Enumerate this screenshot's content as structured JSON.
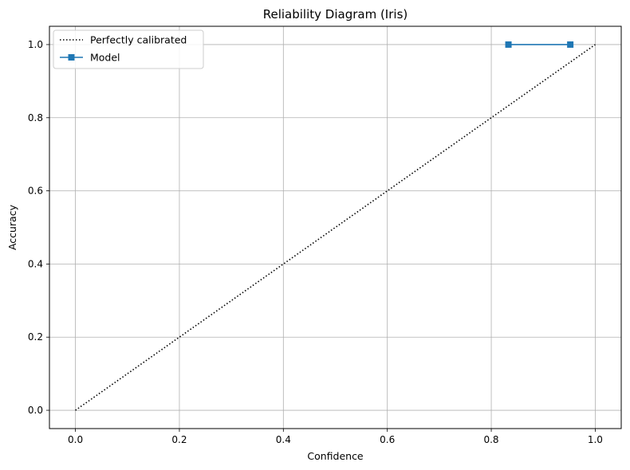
{
  "chart_data": {
    "type": "line",
    "title": "Reliability Diagram (Iris)",
    "xlabel": "Confidence",
    "ylabel": "Accuracy",
    "xlim": [
      -0.05,
      1.05
    ],
    "ylim": [
      -0.05,
      1.05
    ],
    "xticks": [
      "0.0",
      "0.2",
      "0.4",
      "0.6",
      "0.8",
      "1.0"
    ],
    "yticks": [
      "0.0",
      "0.2",
      "0.4",
      "0.6",
      "0.8",
      "1.0"
    ],
    "grid": true,
    "legend_position": "top-left",
    "series": [
      {
        "name": "Perfectly calibrated",
        "style": "dotted",
        "color": "#000000",
        "marker": "none",
        "x": [
          0.0,
          1.0
        ],
        "y": [
          0.0,
          1.0
        ]
      },
      {
        "name": "Model",
        "style": "solid",
        "color": "#1f77b4",
        "marker": "square",
        "x": [
          0.833,
          0.952
        ],
        "y": [
          1.0,
          1.0
        ]
      }
    ]
  }
}
